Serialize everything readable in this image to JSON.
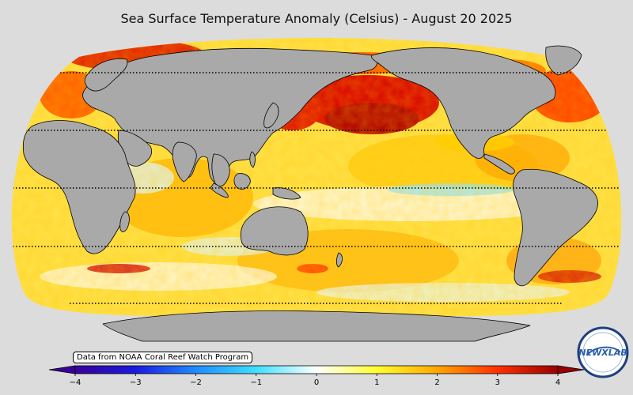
{
  "title": "Sea Surface Temperature Anomaly (Celsius) - August 20 2025",
  "credit": "Data from NOAA Coral Reef Watch Program",
  "colorbar": {
    "min": -4,
    "max": 4,
    "ticks": [
      "−4",
      "−3",
      "−2",
      "−1",
      "0",
      "1",
      "2",
      "3",
      "4"
    ],
    "colors": [
      "#3a0099",
      "#1a1ae0",
      "#1f8cff",
      "#3fe0ff",
      "#ffffff",
      "#ffff30",
      "#ffa600",
      "#ff3000",
      "#990000"
    ]
  },
  "logo": {
    "text": "NEWXLAB",
    "icon": "newx-lab-logo"
  },
  "colors": {
    "land": "#a9a9a9",
    "background": "#dcdcdc",
    "ocean_base": "#ffe24a",
    "warm": "#e00000",
    "cool": "#bff2ff"
  }
}
